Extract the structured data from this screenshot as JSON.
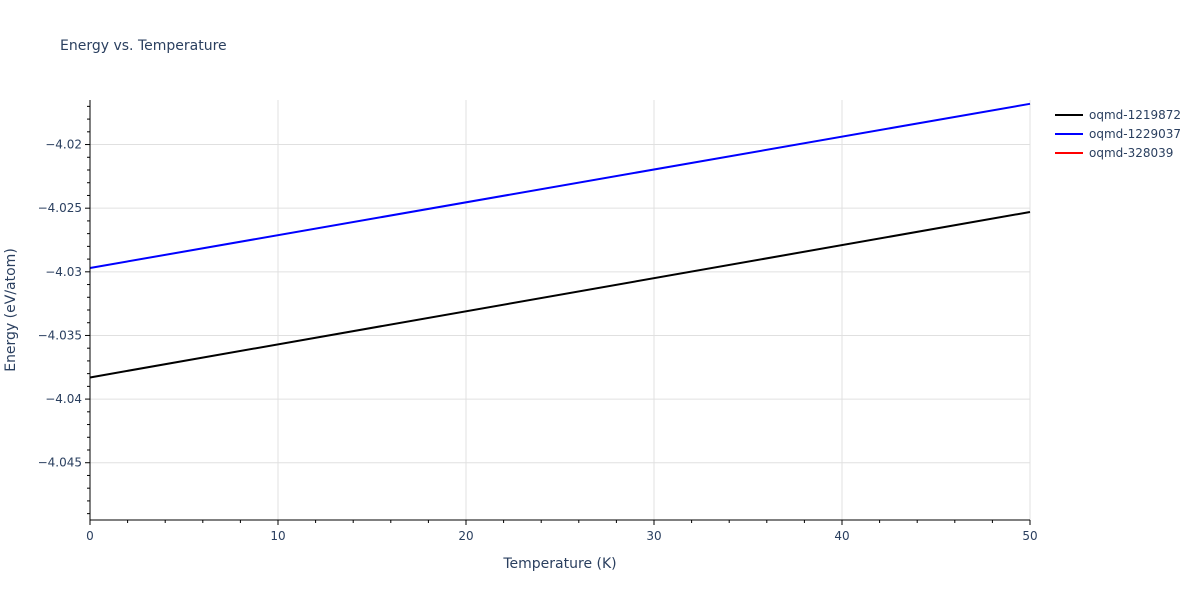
{
  "chart_data": {
    "type": "line",
    "title": "Energy vs. Temperature",
    "xlabel": "Temperature (K)",
    "ylabel": "Energy (eV/atom)",
    "xlim": [
      0,
      50
    ],
    "ylim": [
      -4.0495,
      -4.0165
    ],
    "x_ticks": [
      {
        "value": 0,
        "label": "0"
      },
      {
        "value": 10,
        "label": "10"
      },
      {
        "value": 20,
        "label": "20"
      },
      {
        "value": 30,
        "label": "30"
      },
      {
        "value": 40,
        "label": "40"
      },
      {
        "value": 50,
        "label": "50"
      }
    ],
    "y_ticks": [
      {
        "value": -4.02,
        "label": "−4.02"
      },
      {
        "value": -4.025,
        "label": "−4.025"
      },
      {
        "value": -4.03,
        "label": "−4.03"
      },
      {
        "value": -4.035,
        "label": "−4.035"
      },
      {
        "value": -4.04,
        "label": "−4.04"
      },
      {
        "value": -4.045,
        "label": "−4.045"
      }
    ],
    "grid": true,
    "legend_position": "top-right",
    "series": [
      {
        "name": "oqmd-1219872",
        "color": "#000000",
        "x": [
          0,
          50
        ],
        "y": [
          -4.0383,
          -4.0253
        ]
      },
      {
        "name": "oqmd-1229037",
        "color": "#0000ff",
        "x": [
          0,
          50
        ],
        "y": [
          -4.0297,
          -4.0168
        ]
      },
      {
        "name": "oqmd-328039",
        "color": "#ff0000",
        "x": [],
        "y": []
      }
    ]
  }
}
